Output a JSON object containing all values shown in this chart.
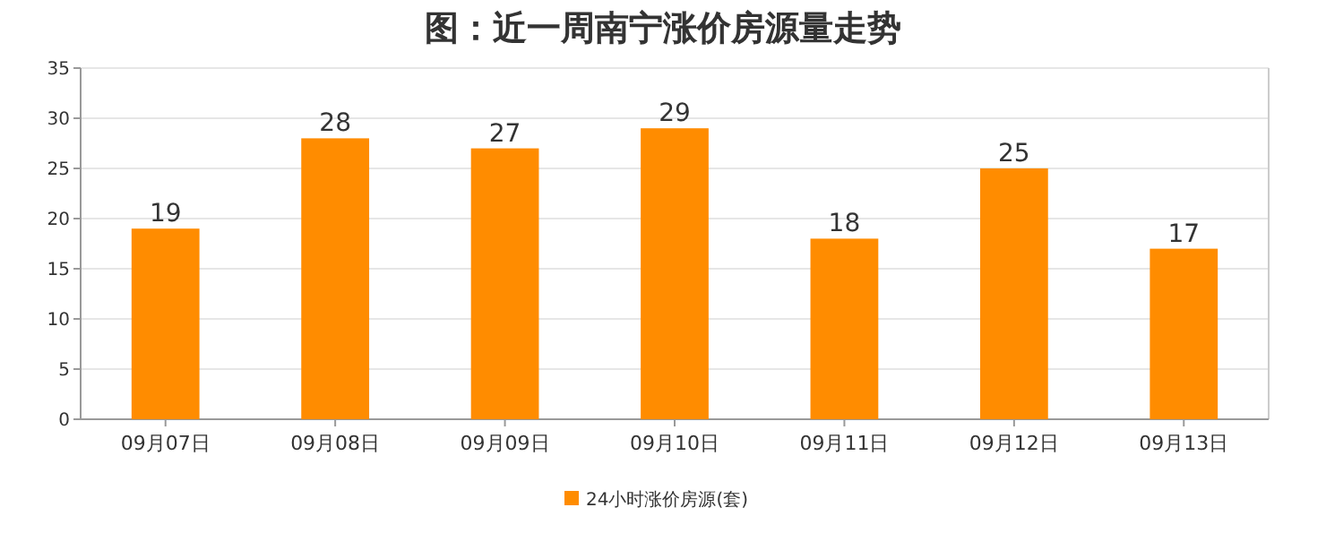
{
  "chart_data": {
    "type": "bar",
    "title": "图：近一周南宁涨价房源量走势",
    "categories": [
      "09月07日",
      "09月08日",
      "09月09日",
      "09月10日",
      "09月11日",
      "09月12日",
      "09月13日"
    ],
    "series": [
      {
        "name": "24小时涨价房源(套)",
        "color": "#ff8c00",
        "values": [
          19,
          28,
          27,
          29,
          18,
          25,
          17
        ]
      }
    ],
    "ylim": [
      0,
      35
    ],
    "yticks": [
      0,
      5,
      10,
      15,
      20,
      25,
      30,
      35
    ],
    "grid": "y",
    "legend": "bottom",
    "data_labels": true
  }
}
